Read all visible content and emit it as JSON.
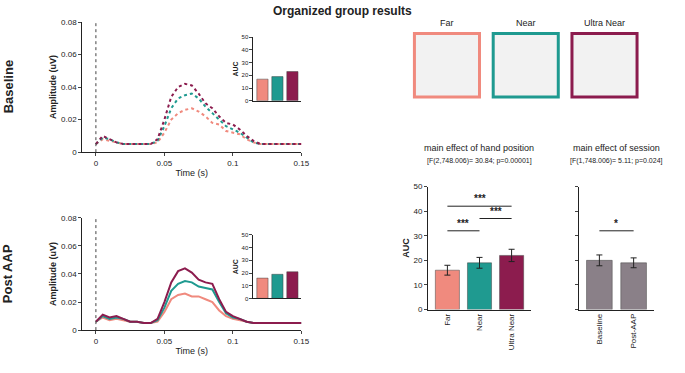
{
  "title": "Organized group results",
  "row_labels": [
    "Baseline",
    "Post AAP"
  ],
  "hand_positions": [
    {
      "label": "Far",
      "color": "#f08a7e"
    },
    {
      "label": "Near",
      "color": "#1f9a90"
    },
    {
      "label": "Ultra Near",
      "color": "#8c1c4e"
    }
  ],
  "chart_data": [
    {
      "type": "line",
      "xlabel": "Time (s)",
      "ylabel": "Amplitude (uV)",
      "x": [
        0,
        0.005,
        0.01,
        0.015,
        0.02,
        0.025,
        0.03,
        0.035,
        0.04,
        0.045,
        0.05,
        0.055,
        0.06,
        0.065,
        0.07,
        0.075,
        0.08,
        0.085,
        0.09,
        0.095,
        0.1,
        0.105,
        0.11,
        0.115,
        0.12,
        0.125,
        0.13,
        0.135,
        0.14,
        0.145,
        0.15
      ],
      "series": [
        {
          "name": "Far",
          "color": "#f08a7e",
          "line_style": "dotted",
          "values": [
            0.005,
            0.008,
            0.007,
            0.006,
            0.005,
            0.005,
            0.005,
            0.005,
            0.005,
            0.006,
            0.012,
            0.02,
            0.024,
            0.026,
            0.027,
            0.025,
            0.022,
            0.018,
            0.017,
            0.013,
            0.012,
            0.011,
            0.008,
            0.006,
            0.005,
            0.005,
            0.005,
            0.005,
            0.005,
            0.005,
            0.005
          ]
        },
        {
          "name": "Near",
          "color": "#1f9a90",
          "line_style": "dotted",
          "values": [
            0.005,
            0.009,
            0.008,
            0.006,
            0.005,
            0.005,
            0.005,
            0.005,
            0.005,
            0.007,
            0.016,
            0.027,
            0.033,
            0.035,
            0.036,
            0.033,
            0.028,
            0.024,
            0.02,
            0.016,
            0.014,
            0.012,
            0.009,
            0.006,
            0.005,
            0.005,
            0.005,
            0.005,
            0.005,
            0.005,
            0.005
          ]
        },
        {
          "name": "Ultra Near",
          "color": "#8c1c4e",
          "line_style": "dotted",
          "values": [
            0.005,
            0.01,
            0.008,
            0.006,
            0.005,
            0.005,
            0.005,
            0.005,
            0.005,
            0.008,
            0.02,
            0.034,
            0.04,
            0.042,
            0.041,
            0.036,
            0.03,
            0.027,
            0.022,
            0.018,
            0.017,
            0.014,
            0.01,
            0.007,
            0.005,
            0.005,
            0.005,
            0.005,
            0.005,
            0.005,
            0.005
          ]
        }
      ],
      "event_x": 0,
      "xlim": [
        -0.01,
        0.15
      ],
      "xticks": [
        0,
        0.05,
        0.1,
        0.15
      ],
      "ylim": [
        0,
        0.08
      ],
      "yticks": [
        0,
        0.02,
        0.04,
        0.06,
        0.08
      ],
      "grid": false
    },
    {
      "type": "bar",
      "ylabel": "AUC",
      "categories": [
        "Far",
        "Near",
        "Ultra Near"
      ],
      "values": [
        17,
        19,
        23
      ],
      "colors": [
        "#f08a7e",
        "#1f9a90",
        "#8c1c4e"
      ],
      "ylim": [
        0,
        50
      ],
      "yticks": [
        0,
        10,
        20,
        30,
        40,
        50
      ],
      "grid": false,
      "tick_labels": "y"
    },
    {
      "type": "line",
      "xlabel": "Time (s)",
      "ylabel": "Amplitude (uV)",
      "x": [
        0,
        0.005,
        0.01,
        0.015,
        0.02,
        0.025,
        0.03,
        0.035,
        0.04,
        0.045,
        0.05,
        0.055,
        0.06,
        0.065,
        0.07,
        0.075,
        0.08,
        0.085,
        0.09,
        0.095,
        0.1,
        0.105,
        0.11,
        0.115,
        0.12,
        0.125,
        0.13,
        0.135,
        0.14,
        0.145,
        0.15
      ],
      "series": [
        {
          "name": "Far",
          "color": "#f08a7e",
          "line_style": "solid",
          "values": [
            0.006,
            0.009,
            0.007,
            0.008,
            0.007,
            0.006,
            0.006,
            0.005,
            0.005,
            0.006,
            0.013,
            0.022,
            0.025,
            0.026,
            0.024,
            0.024,
            0.022,
            0.02,
            0.014,
            0.01,
            0.008,
            0.007,
            0.006,
            0.005,
            0.005,
            0.005,
            0.005,
            0.005,
            0.005,
            0.005,
            0.005
          ]
        },
        {
          "name": "Near",
          "color": "#1f9a90",
          "line_style": "solid",
          "values": [
            0.006,
            0.01,
            0.008,
            0.009,
            0.008,
            0.006,
            0.006,
            0.005,
            0.005,
            0.007,
            0.016,
            0.028,
            0.033,
            0.035,
            0.034,
            0.031,
            0.03,
            0.029,
            0.02,
            0.012,
            0.009,
            0.008,
            0.006,
            0.005,
            0.005,
            0.005,
            0.005,
            0.005,
            0.005,
            0.005,
            0.005
          ]
        },
        {
          "name": "Ultra Near",
          "color": "#8c1c4e",
          "line_style": "solid",
          "values": [
            0.006,
            0.011,
            0.009,
            0.01,
            0.008,
            0.006,
            0.006,
            0.005,
            0.005,
            0.008,
            0.02,
            0.034,
            0.042,
            0.044,
            0.041,
            0.036,
            0.034,
            0.033,
            0.022,
            0.013,
            0.01,
            0.008,
            0.006,
            0.005,
            0.005,
            0.005,
            0.005,
            0.005,
            0.005,
            0.005,
            0.005
          ]
        }
      ],
      "event_x": 0,
      "xlim": [
        -0.01,
        0.15
      ],
      "xticks": [
        0,
        0.05,
        0.1,
        0.15
      ],
      "ylim": [
        0,
        0.08
      ],
      "yticks": [
        0,
        0.02,
        0.04,
        0.06,
        0.08
      ],
      "grid": false
    },
    {
      "type": "bar",
      "ylabel": "AUC",
      "categories": [
        "Far",
        "Near",
        "Ultra Near"
      ],
      "values": [
        16,
        19,
        21
      ],
      "colors": [
        "#f08a7e",
        "#1f9a90",
        "#8c1c4e"
      ],
      "ylim": [
        0,
        50
      ],
      "yticks": [
        0,
        10,
        20,
        30,
        40,
        50
      ],
      "grid": false,
      "tick_labels": "y"
    },
    {
      "type": "bar",
      "title": "main effect of hand position",
      "subtitle": "[F(2,748.006)= 30.84; p=0.00001]",
      "ylabel": "AUC",
      "categories": [
        "Far",
        "Near",
        "Ultra Near"
      ],
      "values": [
        16,
        19,
        22
      ],
      "error": [
        2,
        2.2,
        2.5
      ],
      "colors": [
        "#f08a7e",
        "#1f9a90",
        "#8c1c4e"
      ],
      "ylim": [
        0,
        50
      ],
      "yticks": [
        0,
        10,
        20,
        30,
        40,
        50
      ],
      "grid": false,
      "comparisons": [
        {
          "pair": [
            "Far",
            "Near"
          ],
          "label": "***"
        },
        {
          "pair": [
            "Near",
            "Ultra Near"
          ],
          "label": "***"
        },
        {
          "pair": [
            "Far",
            "Ultra Near"
          ],
          "label": "***"
        }
      ]
    },
    {
      "type": "bar",
      "title": "main effect of session",
      "subtitle": "[F(1,748.006)= 5.11; p=0.024]",
      "categories": [
        "Baseline",
        "Post-AAP"
      ],
      "values": [
        20,
        19
      ],
      "error": [
        2.2,
        2
      ],
      "color": "#8a8088",
      "ylim": [
        0,
        50
      ],
      "yticks": [
        0,
        10,
        20,
        30,
        40,
        50
      ],
      "grid": false,
      "tick_labels": "x",
      "comparisons": [
        {
          "pair": [
            "Baseline",
            "Post-AAP"
          ],
          "label": "*"
        }
      ]
    }
  ]
}
